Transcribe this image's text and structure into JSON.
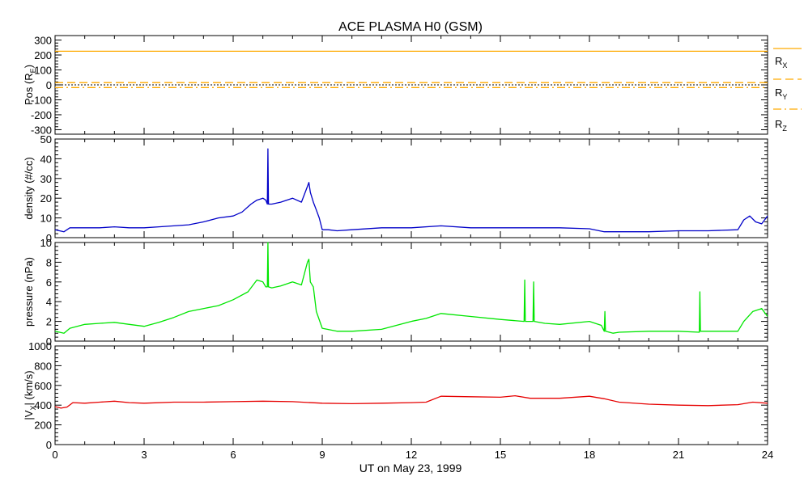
{
  "title": "ACE PLASMA H0 (GSM)",
  "x_axis": {
    "label": "UT on May 23, 1999",
    "min": 0,
    "max": 24,
    "ticks": [
      0,
      3,
      6,
      9,
      12,
      15,
      18,
      21,
      24
    ],
    "tick_labels": [
      "0",
      "3",
      "6",
      "9",
      "12",
      "15",
      "18",
      "21",
      "24"
    ]
  },
  "colors": {
    "pos": "#ffaa00",
    "density": "#0000c8",
    "pressure": "#00e600",
    "velocity": "#e60000",
    "axes": "#000000"
  },
  "legend": {
    "rx": {
      "base": "R",
      "sub": "X"
    },
    "ry": {
      "base": "R",
      "sub": "Y"
    },
    "rz": {
      "base": "R",
      "sub": "Z"
    }
  },
  "chart_data": [
    {
      "type": "line",
      "id": "pos",
      "ylabel_base": "Pos (R",
      "ylabel_sub": "E",
      "ylabel_tail": ")",
      "ylim": [
        -330,
        330
      ],
      "yticks": [
        -300,
        -200,
        -100,
        0,
        100,
        200,
        300
      ],
      "series": [
        {
          "name": "RX",
          "style": "solid",
          "x": [
            0,
            24
          ],
          "y": [
            225,
            225
          ]
        },
        {
          "name": "RY",
          "style": "dashed",
          "x": [
            0,
            24
          ],
          "y": [
            15,
            15
          ]
        },
        {
          "name": "RZ",
          "style": "dashdot",
          "x": [
            0,
            24
          ],
          "y": [
            -18,
            -18
          ]
        }
      ],
      "zero_line": true
    },
    {
      "type": "line",
      "id": "density",
      "ylabel": "density (#/cc)",
      "ylim": [
        0,
        50
      ],
      "yticks": [
        0,
        10,
        20,
        30,
        40,
        50
      ],
      "series": [
        {
          "x": [
            0,
            0.3,
            0.5,
            1,
            1.5,
            2,
            2.5,
            3,
            3.5,
            4,
            4.5,
            5,
            5.5,
            6,
            6.3,
            6.6,
            6.8,
            7,
            7.1,
            7.15,
            7.17,
            7.19,
            7.3,
            7.6,
            8,
            8.3,
            8.5,
            8.55,
            8.6,
            8.7,
            8.8,
            8.9,
            9,
            9.2,
            9.5,
            10,
            11,
            12,
            13,
            14,
            15,
            16,
            17,
            18,
            18.5,
            19,
            20,
            21,
            22,
            23,
            23.2,
            23.4,
            23.6,
            23.8,
            24
          ],
          "y": [
            4,
            3,
            5,
            5,
            5,
            5.5,
            5,
            5,
            5.5,
            6,
            6.5,
            8,
            10,
            11,
            13,
            17,
            19,
            20,
            19,
            17,
            45,
            17,
            17,
            18,
            20,
            18,
            26,
            28,
            23,
            18,
            14,
            10,
            4,
            4,
            3.5,
            4,
            5,
            5,
            6,
            5,
            5,
            5,
            5,
            4.5,
            3,
            3,
            3,
            3.5,
            3.5,
            4,
            9,
            11,
            8,
            7,
            11
          ]
        }
      ]
    },
    {
      "type": "line",
      "id": "pressure",
      "ylabel": "pressure (nPa)",
      "ylim": [
        0,
        10
      ],
      "yticks": [
        0,
        2,
        4,
        6,
        8,
        10
      ],
      "series": [
        {
          "x": [
            0,
            0.3,
            0.5,
            1,
            1.5,
            2,
            2.5,
            3,
            3.5,
            4,
            4.5,
            5,
            5.5,
            6,
            6.5,
            6.8,
            7,
            7.1,
            7.15,
            7.17,
            7.19,
            7.3,
            7.6,
            8,
            8.3,
            8.5,
            8.55,
            8.6,
            8.7,
            8.8,
            9,
            9.5,
            10,
            11,
            12,
            12.5,
            13,
            14,
            15,
            15.8,
            15.82,
            15.84,
            16,
            16.1,
            16.12,
            16.14,
            16.5,
            17,
            18,
            18.4,
            18.5,
            18.52,
            18.54,
            18.8,
            19,
            20,
            21,
            21.7,
            21.72,
            21.74,
            22,
            23,
            23.2,
            23.5,
            23.8,
            24
          ],
          "y": [
            1,
            0.8,
            1.3,
            1.7,
            1.8,
            1.9,
            1.7,
            1.5,
            1.9,
            2.4,
            3,
            3.3,
            3.6,
            4.2,
            5,
            6.2,
            6,
            5.5,
            5.5,
            10,
            5.5,
            5.4,
            5.6,
            6,
            5.7,
            8,
            8.3,
            6,
            5.5,
            3,
            1.3,
            1,
            1,
            1.2,
            2,
            2.3,
            2.8,
            2.5,
            2.2,
            2,
            6.2,
            2,
            2,
            2,
            6,
            2,
            1.8,
            1.7,
            2,
            1.6,
            1,
            3,
            1,
            0.8,
            0.9,
            1,
            1,
            0.9,
            5,
            1,
            1,
            1,
            2,
            3,
            3.3,
            2.5
          ]
        }
      ]
    },
    {
      "type": "line",
      "id": "velocity",
      "ylabel_base": "|V",
      "ylabel_sub": "X",
      "ylabel_tail": "| (km/s)",
      "ylim": [
        0,
        1000
      ],
      "yticks": [
        0,
        200,
        400,
        600,
        800,
        1000
      ],
      "series": [
        {
          "x": [
            0,
            0.2,
            0.4,
            0.6,
            1,
            1.5,
            2,
            2.5,
            3,
            4,
            5,
            6,
            7,
            8,
            9,
            10,
            11,
            12,
            12.5,
            13,
            14,
            15,
            15.5,
            16,
            17,
            18,
            18.5,
            19,
            20,
            21,
            22,
            23,
            23.5,
            24
          ],
          "y": [
            385,
            370,
            380,
            425,
            420,
            430,
            440,
            425,
            420,
            430,
            430,
            435,
            440,
            435,
            420,
            415,
            420,
            425,
            430,
            490,
            485,
            480,
            495,
            470,
            470,
            490,
            465,
            430,
            410,
            400,
            395,
            405,
            430,
            420
          ]
        }
      ]
    }
  ]
}
